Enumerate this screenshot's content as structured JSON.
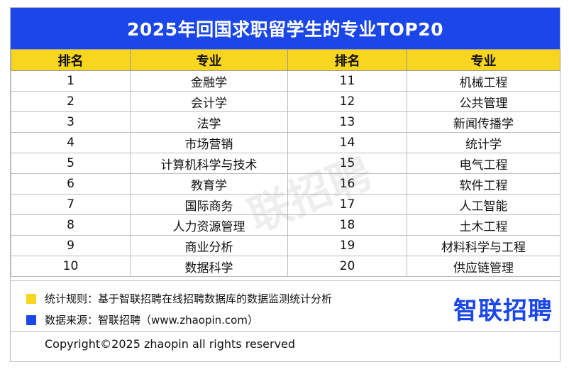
{
  "title": "2025年回国求职留学生的专业TOP20",
  "headers": [
    "排名",
    "专业",
    "排名",
    "专业"
  ],
  "rows": [
    {
      "rank_left": "1",
      "major_left": "金融学",
      "rank_right": "11",
      "major_right": "机械工程"
    },
    {
      "rank_left": "2",
      "major_left": "会计学",
      "rank_right": "12",
      "major_right": "公共管理"
    },
    {
      "rank_left": "3",
      "major_left": "法学",
      "rank_right": "13",
      "major_right": "新闻传播学"
    },
    {
      "rank_left": "4",
      "major_left": "市场营销",
      "rank_right": "14",
      "major_right": "统计学"
    },
    {
      "rank_left": "5",
      "major_left": "计算机科学与技术",
      "rank_right": "15",
      "major_right": "电气工程"
    },
    {
      "rank_left": "6",
      "major_left": "教育学",
      "rank_right": "16",
      "major_right": "软件工程"
    },
    {
      "rank_left": "7",
      "major_left": "国际商务",
      "rank_right": "17",
      "major_right": "人工智能"
    },
    {
      "rank_left": "8",
      "major_left": "人力资源管理",
      "rank_right": "18",
      "major_right": "土木工程"
    },
    {
      "rank_left": "9",
      "major_left": "商业分析",
      "rank_right": "19",
      "major_right": "材料科学与工程"
    },
    {
      "rank_left": "10",
      "major_left": "数据科学",
      "rank_right": "20",
      "major_right": "供应链管理"
    }
  ],
  "watermark": "联招聘",
  "notes": {
    "rule": "统计规则：基于智联招聘在线招聘数据库的数据监测统计分析",
    "source": "数据来源：智联招聘（www.zhaopin.com）"
  },
  "logo": "智联招聘",
  "copyright": "Copyright©2025 zhaopin all rights reserved",
  "colors": {
    "title_bg": "#1b47e8",
    "header_bg": "#f8d51e",
    "rule_swatch": "#f8d51e",
    "source_swatch": "#1b47e8",
    "logo": "#1b47e8"
  }
}
